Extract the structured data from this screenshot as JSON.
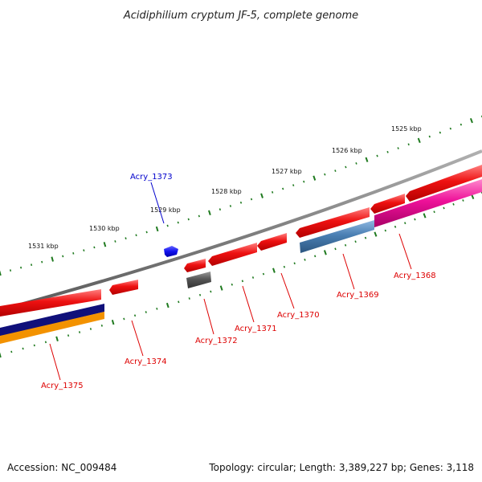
{
  "title": "Acidiphilium cryptum JF-5, complete genome",
  "footer": {
    "accession": "Accession: NC_009484",
    "summary": "Topology: circular; Length: 3,389,227 bp; Genes: 3,118"
  },
  "colors": {
    "backbone": "#808080",
    "tick": "#1f7a1f",
    "forward_gene": "#ee1111",
    "reverse_gene": "#ee1111",
    "grey_gene": "#555555",
    "steel_gene": "#4a7fb3",
    "pink_gene": "#ee1199",
    "navy_gene": "#10107a",
    "orange_gene": "#f39200",
    "blue_gene": "#1111ee",
    "label_red": "#dd0000",
    "label_blue": "#0000cc"
  },
  "scale_labels": [
    "1531 kbp",
    "1530 kbp",
    "1529 kbp",
    "1528 kbp",
    "1527 kbp",
    "1526 kbp",
    "1525 kbp"
  ],
  "gene_labels": [
    {
      "name": "Acry_1373",
      "color": "blue"
    },
    {
      "name": "Acry_1375",
      "color": "red"
    },
    {
      "name": "Acry_1374",
      "color": "red"
    },
    {
      "name": "Acry_1372",
      "color": "red"
    },
    {
      "name": "Acry_1371",
      "color": "red"
    },
    {
      "name": "Acry_1370",
      "color": "red"
    },
    {
      "name": "Acry_1369",
      "color": "red"
    },
    {
      "name": "Acry_1368",
      "color": "red"
    }
  ]
}
